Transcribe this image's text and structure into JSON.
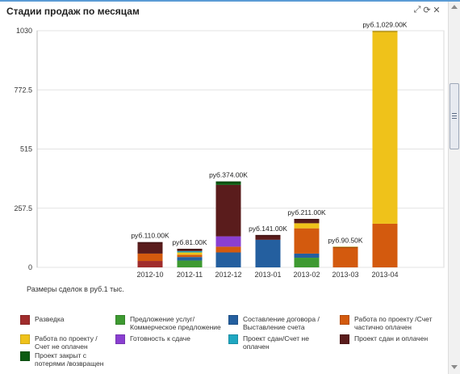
{
  "panel": {
    "title": "Стадии продаж по месяцам"
  },
  "header_icons": [
    "expand-icon",
    "refresh-icon",
    "close-icon"
  ],
  "chart_data": {
    "type": "stacked-bar",
    "y_ticks": [
      "1030",
      "772.5",
      "515",
      "257.5",
      "0"
    ],
    "ylim": [
      0,
      1030
    ],
    "grid": true,
    "categories": [
      "2012-10",
      "2012-11",
      "2012-12",
      "2013-01",
      "2013-02",
      "2013-03",
      "2013-04"
    ],
    "totals_labels": [
      "руб.110.00K",
      "руб.81.00K",
      "руб.374.00K",
      "руб.141.00K",
      "руб.211.00K",
      "руб.90.50K",
      "руб.1,029.00K"
    ],
    "series": [
      {
        "name": "Разведка",
        "color": "#a02c2c",
        "values": [
          28,
          0,
          0,
          0,
          0,
          0,
          0
        ]
      },
      {
        "name": "Предложение услуг/ Коммерческое предложение",
        "color": "#3e9a31",
        "values": [
          0,
          30,
          0,
          0,
          42,
          0,
          0
        ]
      },
      {
        "name": "Составление договора / Выставление счета",
        "color": "#245f9f",
        "values": [
          0,
          15,
          65,
          120,
          18,
          0,
          0
        ]
      },
      {
        "name": "Работа по проекту /Счет частично оплачен",
        "color": "#d35a0e",
        "values": [
          32,
          10,
          25,
          0,
          110,
          88,
          190
        ]
      },
      {
        "name": "Работа по проекту / Счет не оплачен",
        "color": "#efc21a",
        "values": [
          0,
          10,
          0,
          0,
          22,
          2,
          839
        ]
      },
      {
        "name": "Готовность к сдаче",
        "color": "#8a3fd1",
        "values": [
          0,
          0,
          45,
          0,
          0,
          0,
          0
        ]
      },
      {
        "name": "Проект сдан/Счет не оплачен",
        "color": "#1fa7c1",
        "values": [
          0,
          6,
          0,
          0,
          0,
          0,
          0
        ]
      },
      {
        "name": "Проект сдан и оплачен",
        "color": "#5a1c1c",
        "values": [
          50,
          10,
          224,
          21,
          19,
          0,
          0
        ]
      },
      {
        "name": "Проект закрыт с потерями /возвращен",
        "color": "#0d5b12",
        "values": [
          0,
          0,
          15,
          0,
          0,
          0,
          0
        ]
      }
    ],
    "note": "Размеры сделок в руб.1 тыс."
  },
  "legend": [
    {
      "lines": [
        "Разведка"
      ],
      "color": "#a02c2c"
    },
    {
      "lines": [
        "Предложение услуг/",
        "Коммерческое предложение"
      ],
      "color": "#3e9a31"
    },
    {
      "lines": [
        "Составление договора /",
        "Выставление счета"
      ],
      "color": "#245f9f"
    },
    {
      "lines": [
        "Работа по проекту /Счет",
        "частично оплачен"
      ],
      "color": "#d35a0e"
    },
    {
      "lines": [
        "Работа по проекту /",
        "Счет не оплачен"
      ],
      "color": "#efc21a"
    },
    {
      "lines": [
        "Готовность к сдаче"
      ],
      "color": "#8a3fd1"
    },
    {
      "lines": [
        "Проект сдан/Счет не",
        "оплачен"
      ],
      "color": "#1fa7c1"
    },
    {
      "lines": [
        "Проект сдан и оплачен"
      ],
      "color": "#5a1c1c"
    },
    {
      "lines": [
        "Проект закрыт с",
        "потерями /возвращен"
      ],
      "color": "#0d5b12"
    }
  ]
}
